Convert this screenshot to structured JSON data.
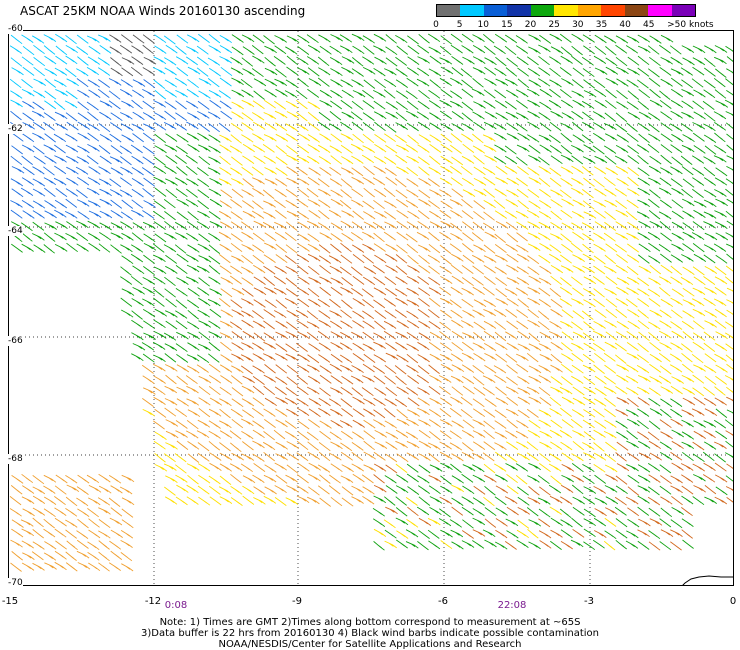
{
  "title": "ASCAT 25KM NOAA Winds 20160130 ascending",
  "color_scale": {
    "labels": [
      "0",
      "5",
      "10",
      "15",
      "20",
      "25",
      "30",
      "35",
      "40",
      "45",
      ">50 knots"
    ],
    "colors": [
      "#707070",
      "#00c8ff",
      "#0a5fd6",
      "#1234a8",
      "#0da80d",
      "#ffe600",
      "#ffa500",
      "#ff4500",
      "#8b4513",
      "#ff00ff",
      "#7a00b8"
    ]
  },
  "map": {
    "lat_labels": [
      "-60",
      "-62",
      "-64",
      "-66",
      "-68",
      "-70"
    ],
    "lon_labels": [
      "-15",
      "-12",
      "-9",
      "-6",
      "-3",
      "0"
    ],
    "time_labels": [
      "0:08",
      "22:08"
    ]
  },
  "notes": {
    "line1": "Note: 1) Times are GMT 2)Times along bottom correspond to measurement at ~65S",
    "line2": "3)Data buffer is 22 hrs from 20160130 4) Black wind barbs indicate possible contamination",
    "line3": "NOAA/NESDIS/Center for Satellite Applications and Research"
  }
}
